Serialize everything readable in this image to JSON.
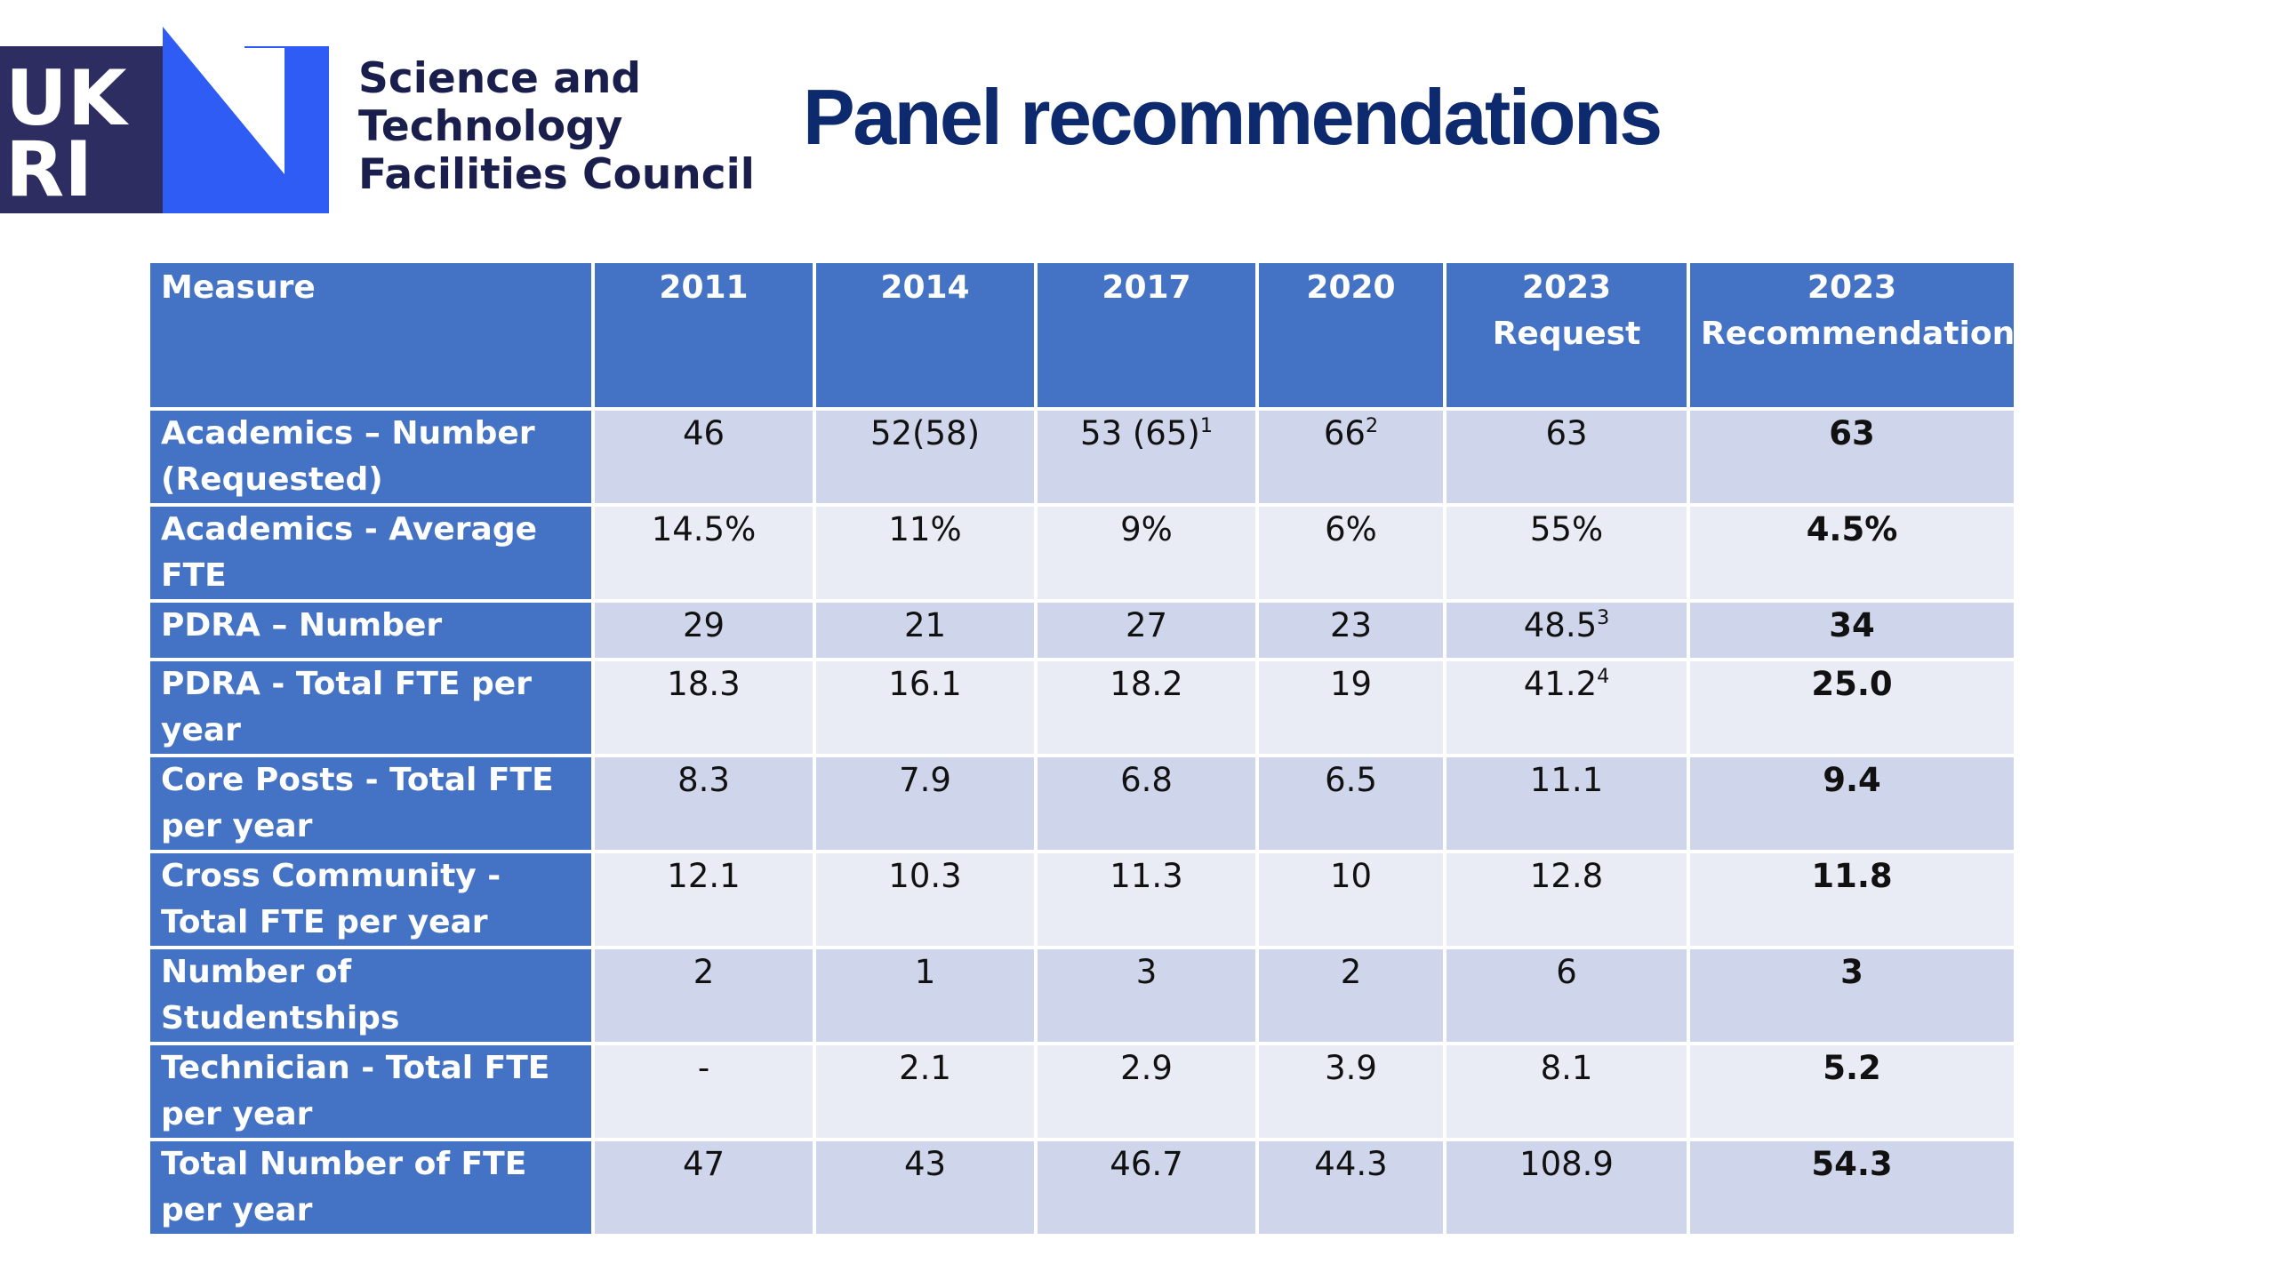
{
  "header": {
    "logo": {
      "name": "UKRI",
      "colors": {
        "dark": "#2e2d62",
        "blue": "#2e5cf5"
      }
    },
    "org_name": [
      "Science and",
      "Technology",
      "Facilities Council"
    ],
    "title": "Panel recommendations"
  },
  "table": {
    "header_color": "#4472c4",
    "row_colors": [
      "#cfd5ea",
      "#e9ebf5"
    ],
    "columns": [
      "Measure",
      "2011",
      "2014",
      "2017",
      "2020",
      "2023 Request",
      "2023 Recommendation"
    ],
    "rows": [
      {
        "measure": "Academics – Number (Requested)",
        "cells": [
          {
            "value": "46"
          },
          {
            "value": "52(58)"
          },
          {
            "value": "53 (65)",
            "sup": "1"
          },
          {
            "value": "66",
            "sup": "2"
          },
          {
            "value": "63"
          },
          {
            "value": "63"
          }
        ]
      },
      {
        "measure": "Academics - Average FTE",
        "cells": [
          {
            "value": "14.5%"
          },
          {
            "value": "11%"
          },
          {
            "value": "9%"
          },
          {
            "value": "6%"
          },
          {
            "value": "55%"
          },
          {
            "value": "4.5%"
          }
        ]
      },
      {
        "measure": "PDRA – Number",
        "cells": [
          {
            "value": "29"
          },
          {
            "value": "21"
          },
          {
            "value": "27"
          },
          {
            "value": "23"
          },
          {
            "value": "48.5",
            "sup": "3"
          },
          {
            "value": "34"
          }
        ]
      },
      {
        "measure": "PDRA - Total FTE per year",
        "cells": [
          {
            "value": "18.3"
          },
          {
            "value": "16.1"
          },
          {
            "value": "18.2"
          },
          {
            "value": "19"
          },
          {
            "value": "41.2",
            "sup": "4"
          },
          {
            "value": "25.0"
          }
        ]
      },
      {
        "measure": "Core Posts - Total FTE per year",
        "cells": [
          {
            "value": "8.3"
          },
          {
            "value": "7.9"
          },
          {
            "value": "6.8"
          },
          {
            "value": "6.5"
          },
          {
            "value": "11.1"
          },
          {
            "value": "9.4"
          }
        ]
      },
      {
        "measure": "Cross Community - Total FTE  per year",
        "cells": [
          {
            "value": "12.1"
          },
          {
            "value": "10.3"
          },
          {
            "value": "11.3"
          },
          {
            "value": "10"
          },
          {
            "value": "12.8"
          },
          {
            "value": "11.8"
          }
        ]
      },
      {
        "measure": "Number of Studentships",
        "cells": [
          {
            "value": "2"
          },
          {
            "value": "1"
          },
          {
            "value": "3"
          },
          {
            "value": "2"
          },
          {
            "value": "6"
          },
          {
            "value": "3"
          }
        ]
      },
      {
        "measure": "Technician - Total FTE per year",
        "cells": [
          {
            "value": "-"
          },
          {
            "value": "2.1"
          },
          {
            "value": "2.9"
          },
          {
            "value": "3.9"
          },
          {
            "value": "8.1"
          },
          {
            "value": "5.2"
          }
        ]
      },
      {
        "measure": "Total Number of FTE per year",
        "cells": [
          {
            "value": "47"
          },
          {
            "value": "43"
          },
          {
            "value": "46.7"
          },
          {
            "value": "44.3"
          },
          {
            "value": "108.9"
          },
          {
            "value": "54.3"
          }
        ]
      }
    ]
  }
}
